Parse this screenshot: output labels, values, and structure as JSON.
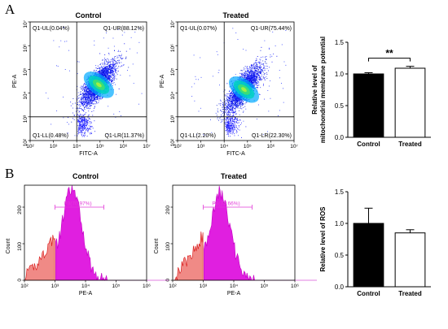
{
  "panels": {
    "A": "A",
    "B": "B"
  },
  "chart_data": [
    {
      "type": "scatter",
      "title": "Control",
      "xlabel": "FITC-A",
      "ylabel": "PE-A",
      "x_ticks": [
        "10²",
        "10³",
        "10⁴",
        "10⁵",
        "10⁶",
        "10⁷"
      ],
      "y_ticks": [
        "10²",
        "10³",
        "10⁴",
        "10⁵",
        "10⁶",
        "10⁷"
      ],
      "xlim": [
        2,
        7
      ],
      "ylim": [
        2,
        7
      ],
      "gate_x": 4.0,
      "gate_y": 3.0,
      "quadrants": {
        "ul": "Q1-UL(0.04%)",
        "ur": "Q1-UR(88.12%)",
        "ll": "Q1-LL(0.48%)",
        "lr": "Q1-LR(11.37%)"
      },
      "values": {
        "ul": 0.04,
        "ur": 88.12,
        "ll": 0.48,
        "lr": 11.37
      },
      "cluster_center": [
        4.9,
        4.4
      ]
    },
    {
      "type": "scatter",
      "title": "Treated",
      "xlabel": "FITC-A",
      "ylabel": "PE-A",
      "x_ticks": [
        "10²",
        "10³",
        "10⁴",
        "10⁵",
        "10⁶",
        "10⁷"
      ],
      "y_ticks": [
        "10²",
        "10³",
        "10⁴",
        "10⁵",
        "10⁶",
        "10⁷"
      ],
      "xlim": [
        2,
        7
      ],
      "ylim": [
        2,
        7
      ],
      "gate_x": 4.0,
      "gate_y": 3.0,
      "quadrants": {
        "ul": "Q1-UL(0.07%)",
        "ur": "Q1-UR(75.44%)",
        "ll": "Q1-LL(2.20%)",
        "lr": "Q1-LR(22.30%)"
      },
      "values": {
        "ul": 0.07,
        "ur": 75.44,
        "ll": 2.2,
        "lr": 22.3
      },
      "cluster_center": [
        4.8,
        4.2
      ]
    },
    {
      "type": "bar",
      "categories": [
        "Control",
        "Treated"
      ],
      "values": [
        1.0,
        1.09
      ],
      "errors": [
        0.02,
        0.03
      ],
      "ylabel_lines": [
        "Relative level of",
        "mitochondrial membrane potential"
      ],
      "ylim": [
        0,
        1.5
      ],
      "y_ticks": [
        "0.0",
        "0.5",
        "1.0",
        "1.5"
      ],
      "tick_values": [
        0,
        0.5,
        1.0,
        1.5
      ],
      "fills": [
        "#000000",
        "#ffffff"
      ],
      "significance": "**"
    },
    {
      "type": "area",
      "title": "Control",
      "xlabel": "PE-A",
      "ylabel": "Count",
      "x_ticks": [
        "10²",
        "10³",
        "10⁴",
        "10⁵",
        "10⁶"
      ],
      "xlim": [
        2,
        6
      ],
      "ylim": [
        0,
        260
      ],
      "y_ticks": [
        "0",
        "100",
        "200"
      ],
      "tick_values": [
        0,
        100,
        200
      ],
      "gate_label": "P3(70.97%)",
      "gate_value": 70.97,
      "gate_range": [
        3.0,
        4.6
      ],
      "gate_level": 200,
      "peak": [
        3.55,
        248
      ]
    },
    {
      "type": "area",
      "title": "Treated",
      "xlabel": "PE-A",
      "ylabel": "Count",
      "x_ticks": [
        "10²",
        "10³",
        "10⁴",
        "10⁵",
        "10⁶"
      ],
      "xlim": [
        2,
        6
      ],
      "ylim": [
        0,
        260
      ],
      "y_ticks": [
        "0",
        "100",
        "200"
      ],
      "tick_values": [
        0,
        100,
        200
      ],
      "gate_label": "P3(74.66%)",
      "gate_value": 74.66,
      "gate_range": [
        3.0,
        4.6
      ],
      "gate_level": 200,
      "peak": [
        3.55,
        240
      ]
    },
    {
      "type": "bar",
      "categories": [
        "Control",
        "Treated"
      ],
      "values": [
        1.0,
        0.85
      ],
      "errors": [
        0.24,
        0.05
      ],
      "ylabel_lines": [
        "Relative level of  ROS"
      ],
      "ylim": [
        0,
        1.5
      ],
      "y_ticks": [
        "0.0",
        "0.5",
        "1.0",
        "1.5"
      ],
      "tick_values": [
        0,
        0.5,
        1.0,
        1.5
      ],
      "fills": [
        "#000000",
        "#ffffff"
      ]
    }
  ]
}
